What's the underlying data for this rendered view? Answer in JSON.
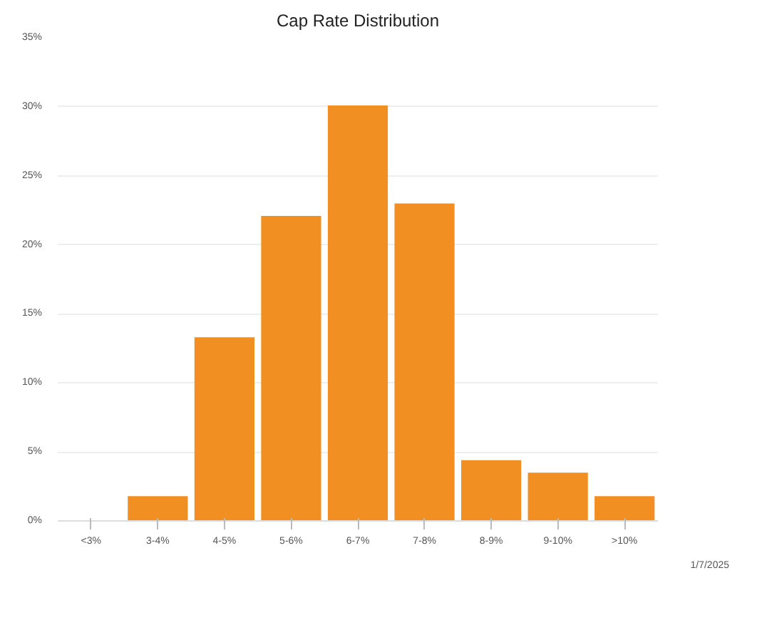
{
  "chart_data": {
    "type": "bar",
    "title": "Cap Rate Distribution",
    "categories": [
      "<3%",
      "3-4%",
      "4-5%",
      "5-6%",
      "6-7%",
      "7-8%",
      "8-9%",
      "9-10%",
      ">10%"
    ],
    "values": [
      0,
      1.8,
      13.3,
      22.1,
      30.1,
      23.0,
      4.4,
      3.5,
      1.8
    ],
    "color": "#f28f22",
    "ylim": [
      0,
      35
    ],
    "yticks": [
      {
        "value": 0,
        "label": "0%"
      },
      {
        "value": 5,
        "label": "5%"
      },
      {
        "value": 10,
        "label": "10%"
      },
      {
        "value": 15,
        "label": "15%"
      },
      {
        "value": 20,
        "label": "20%"
      },
      {
        "value": 25,
        "label": "25%"
      },
      {
        "value": 30,
        "label": "30%"
      },
      {
        "value": 35,
        "label": "35%"
      }
    ],
    "grid": "y",
    "annotations": [
      "1/7/2025"
    ]
  }
}
